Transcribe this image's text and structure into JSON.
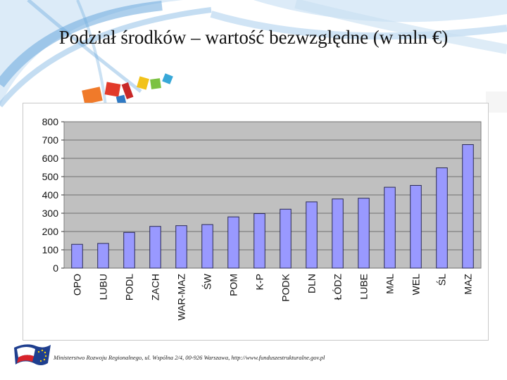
{
  "slide": {
    "title": "Podział środków – wartość bezwzględne (w mln €)",
    "footer": "Ministerstwo Rozwoju Regionalnego, ul. Wspólna 2/4, 00-926 Warszawa, http://www.funduszestrukturalne.gov.pl",
    "logo_icon": "ministry-flag-logo-icon"
  },
  "colors": {
    "bar_fill": "#9999ff",
    "bar_stroke": "#2a2a55",
    "plot_background": "#c0c0c0",
    "decor_blue": "#6aa8dc",
    "decor_orange": "#f07a2a"
  },
  "chart_data": {
    "type": "bar",
    "title": "",
    "xlabel": "",
    "ylabel": "",
    "ylim": [
      0,
      800
    ],
    "yticks": [
      0,
      100,
      200,
      300,
      400,
      500,
      600,
      700,
      800
    ],
    "grid": true,
    "legend": "none",
    "categories": [
      "OPO",
      "LUBU",
      "PODL",
      "ZACH",
      "WAR-MAZ",
      "ŚW",
      "POM",
      "K-P",
      "PODK",
      "DLN",
      "ŁÓDZ",
      "LUBE",
      "MAL",
      "WEL",
      "ŚL",
      "MAZ"
    ],
    "values": [
      130,
      135,
      195,
      228,
      232,
      238,
      280,
      298,
      322,
      362,
      378,
      382,
      442,
      452,
      548,
      675
    ]
  }
}
